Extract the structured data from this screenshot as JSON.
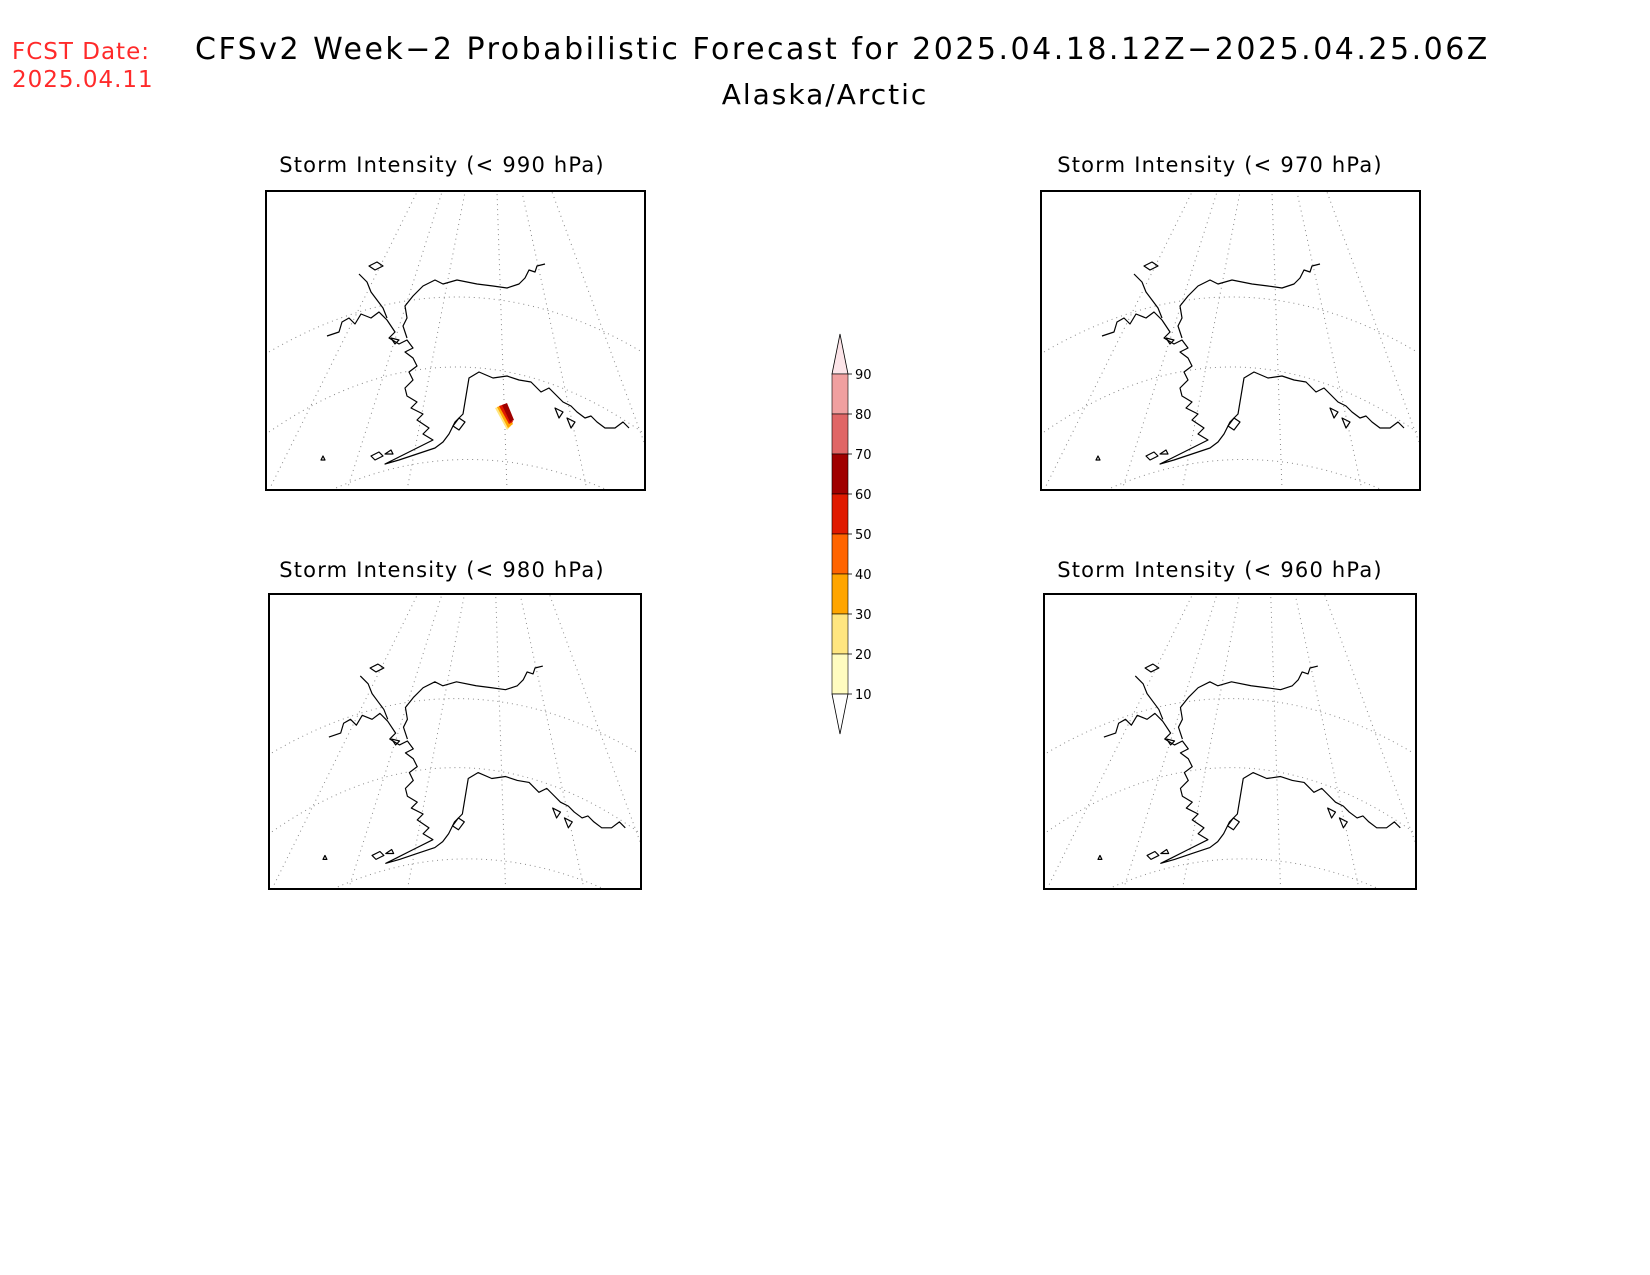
{
  "header": {
    "fcst_label": "FCST Date:",
    "fcst_date": "2025.04.11",
    "title": "CFSv2 Week−2 Probabilistic Forecast for 2025.04.18.12Z−2025.04.25.06Z",
    "subtitle": "Alaska/Arctic"
  },
  "panels": [
    {
      "title": "Storm Intensity (< 990 hPa)",
      "threshold_hpa": 990,
      "has_probability_shading": true,
      "shading_region": "Gulf of Alaska"
    },
    {
      "title": "Storm Intensity (< 970 hPa)",
      "threshold_hpa": 970,
      "has_probability_shading": false
    },
    {
      "title": "Storm Intensity (< 980 hPa)",
      "threshold_hpa": 980,
      "has_probability_shading": false
    },
    {
      "title": "Storm Intensity (< 960 hPa)",
      "threshold_hpa": 960,
      "has_probability_shading": false
    }
  ],
  "colorbar": {
    "ticks": [
      "10",
      "20",
      "30",
      "40",
      "50",
      "60",
      "70",
      "80",
      "90"
    ],
    "colors": [
      "#fffcc0",
      "#ffe680",
      "#ffa500",
      "#ff6400",
      "#e01a00",
      "#a00000",
      "#e06666",
      "#f0a0a0",
      "#fce4e8"
    ]
  }
}
